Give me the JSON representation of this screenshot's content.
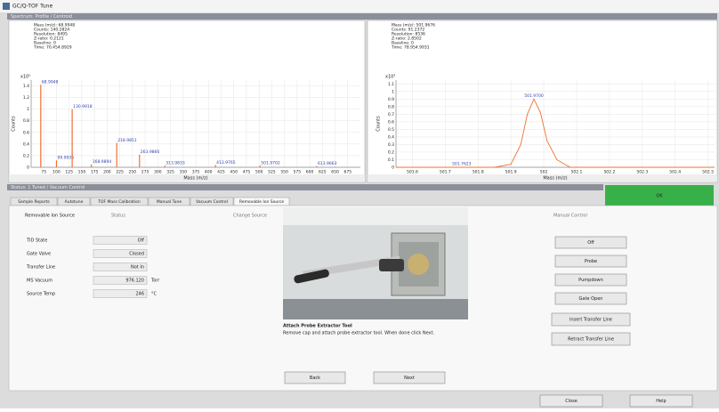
{
  "window": {
    "title": "GC/Q-TOF Tune",
    "header_left": "Spectrum: Profile / Centroid",
    "status_bar": "Status: 1 Tuned / Vacuum Control"
  },
  "spectra": {
    "left": {
      "info": [
        "Mass (m/z): 68.9948",
        "Counts: 140.2824",
        "Resolution: 8495",
        "Z-ratio: 0.2121",
        "Baseline: 0",
        "Time: 70.454.8929"
      ],
      "exponent": "x10⁵",
      "ylabel": "Counts",
      "xlabel": "Mass (m/z)",
      "xlim": [
        50,
        700
      ],
      "ylim": [
        0,
        1.5
      ],
      "xticks": [
        75,
        100,
        125,
        150,
        175,
        200,
        225,
        250,
        275,
        300,
        325,
        350,
        375,
        400,
        425,
        450,
        475,
        500,
        525,
        550,
        575,
        600,
        625,
        650,
        675
      ],
      "yticks": [
        0,
        0.2,
        0.4,
        0.6,
        0.8,
        1,
        1.2,
        1.4
      ],
      "color": "#f07030",
      "peaks": [
        {
          "mass": 68.9948,
          "intensity": 1.42
        },
        {
          "mass": 99.9936,
          "intensity": 0.12
        },
        {
          "mass": 130.9918,
          "intensity": 1.0
        },
        {
          "mass": 168.9894,
          "intensity": 0.05
        },
        {
          "mass": 218.9851,
          "intensity": 0.42
        },
        {
          "mass": 263.9866,
          "intensity": 0.22
        },
        {
          "mass": 313.9833,
          "intensity": 0.03
        },
        {
          "mass": 413.9765,
          "intensity": 0.04
        },
        {
          "mass": 501.9702,
          "intensity": 0.03
        },
        {
          "mass": 613.9663,
          "intensity": 0.02
        }
      ]
    },
    "right": {
      "info": [
        "Mass (m/z): 501.9676",
        "Counts: 91.2372",
        "Resolution: 8536",
        "Z-ratio: 2.8502",
        "Baseline: 0",
        "Time: 78.954.9931"
      ],
      "exponent": "x10³",
      "ylabel": "Counts",
      "xlabel": "Mass (m/z)",
      "xlim": [
        501.55,
        502.52
      ],
      "ylim": [
        0,
        1.15
      ],
      "xticks": [
        501.6,
        501.7,
        501.8,
        501.9,
        502,
        502.1,
        502.2,
        502.3,
        502.4,
        502.5
      ],
      "yticks": [
        0,
        0.1,
        0.2,
        0.3,
        0.4,
        0.5,
        0.6,
        0.7,
        0.8,
        0.9,
        1,
        1.1
      ],
      "color": "#f07030",
      "x": [
        501.55,
        501.85,
        501.9,
        501.93,
        501.95,
        501.97,
        501.99,
        502.01,
        502.04,
        502.08,
        502.52
      ],
      "y": [
        0,
        0,
        0.04,
        0.3,
        0.7,
        0.9,
        0.72,
        0.35,
        0.1,
        0,
        0
      ],
      "peak_label": "501.9700",
      "minor_label": "501.7623"
    }
  },
  "ok_indicator": "OK",
  "tabs": [
    "Sample Reports",
    "Autotune",
    "TOF Mass Calibration",
    "Manual Tune",
    "Vacuum Control",
    "Removable Ion Source"
  ],
  "panel": {
    "heading": "Removable Ion Source",
    "status_heading": "Status",
    "change_heading": "Change Source",
    "manual_heading": "Manual Control",
    "fields": [
      {
        "label": "TID State",
        "value": "Off",
        "unit": null
      },
      {
        "label": "Gate Valve",
        "value": "Closed",
        "unit": null
      },
      {
        "label": "Transfer Line",
        "value": "Not In",
        "unit": null
      },
      {
        "label": "MS Vacuum",
        "value": "976.120",
        "unit": "Torr"
      },
      {
        "label": "Source Temp",
        "value": "246",
        "unit": "°C"
      }
    ],
    "step_title": "Attach Probe Extractor Tool",
    "step_text": "Remove cap and attach probe extractor tool.  When done click Next.",
    "back": "Back",
    "next": "Next",
    "manual_buttons": [
      "Off",
      "Probe",
      "Pumpdown",
      "Gate Open"
    ],
    "line_buttons": [
      "Insert Transfer Line",
      "Retract Transfer Line"
    ]
  },
  "footer": {
    "close": "Close",
    "help": "Help"
  }
}
